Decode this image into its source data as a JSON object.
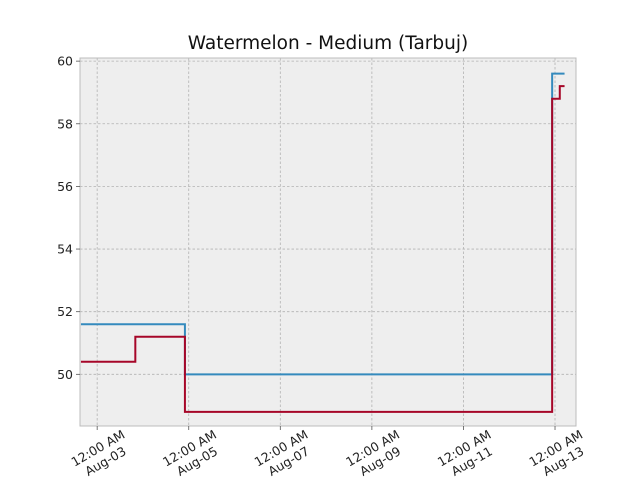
{
  "chart_data": {
    "type": "line",
    "title": "Watermelon - Medium (Tarbuj)",
    "xlabel": "",
    "ylabel": "",
    "grid": true,
    "x_range": [
      "2024-08-02T15:00",
      "2024-08-13T11:00"
    ],
    "ylim": [
      48.35,
      60.1
    ],
    "y_ticks": [
      50,
      52,
      54,
      56,
      58,
      60
    ],
    "x_ticks": [
      {
        "x": "2024-08-03T00:00",
        "time": "12:00 AM",
        "date": "Aug-03"
      },
      {
        "x": "2024-08-05T00:00",
        "time": "12:00 AM",
        "date": "Aug-05"
      },
      {
        "x": "2024-08-07T00:00",
        "time": "12:00 AM",
        "date": "Aug-07"
      },
      {
        "x": "2024-08-09T00:00",
        "time": "12:00 AM",
        "date": "Aug-09"
      },
      {
        "x": "2024-08-11T00:00",
        "time": "12:00 AM",
        "date": "Aug-11"
      },
      {
        "x": "2024-08-13T00:00",
        "time": "12:00 AM",
        "date": "Aug-13"
      }
    ],
    "series": [
      {
        "color": "#348ABD",
        "step": "post",
        "points": [
          {
            "x": "2024-08-02T15:30",
            "y": 51.6
          },
          {
            "x": "2024-08-04T22:00",
            "y": 50.0
          },
          {
            "x": "2024-08-12T22:30",
            "y": 59.6
          },
          {
            "x": "2024-08-13T05:00",
            "y": 59.6
          }
        ]
      },
      {
        "color": "#A60628",
        "step": "post",
        "points": [
          {
            "x": "2024-08-02T15:30",
            "y": 50.4
          },
          {
            "x": "2024-08-03T20:00",
            "y": 51.2
          },
          {
            "x": "2024-08-04T22:00",
            "y": 48.8
          },
          {
            "x": "2024-08-12T22:30",
            "y": 58.8
          },
          {
            "x": "2024-08-13T02:30",
            "y": 59.2
          },
          {
            "x": "2024-08-13T05:00",
            "y": 59.2
          }
        ]
      }
    ]
  }
}
